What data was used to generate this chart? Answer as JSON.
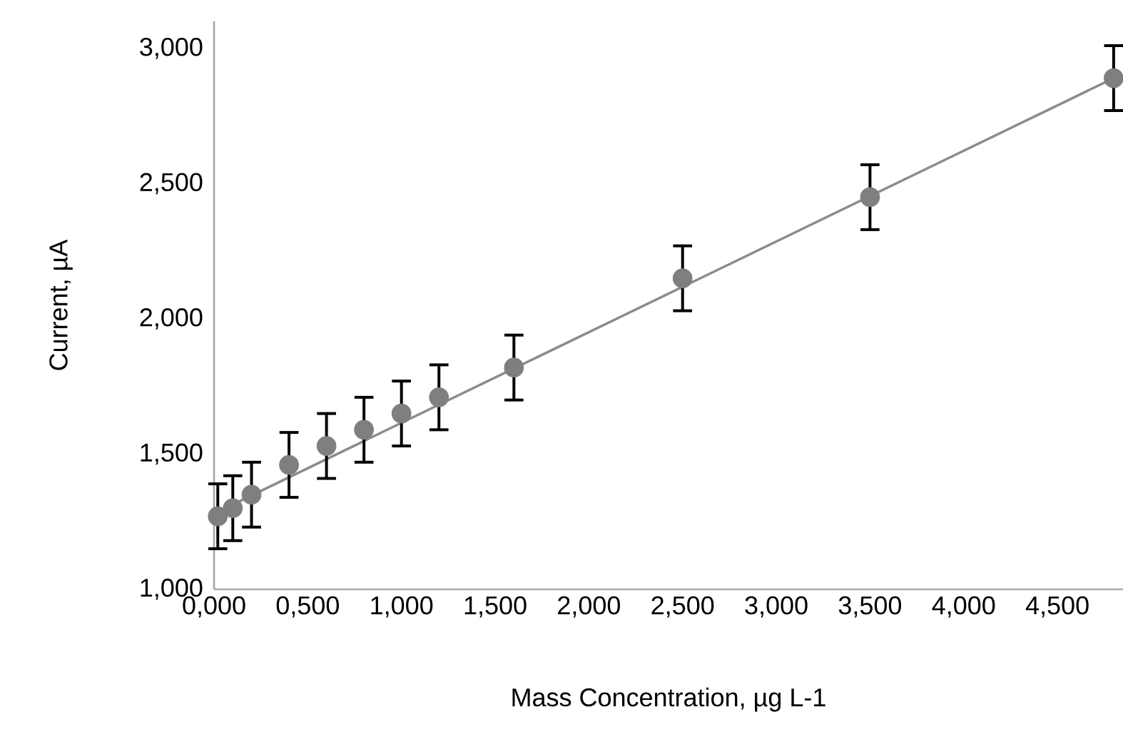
{
  "chart_data": {
    "type": "scatter",
    "xlabel": "Mass Concentration, µg L-1",
    "ylabel": "Current, µA",
    "xlim": [
      0,
      4.85
    ],
    "ylim": [
      1.0,
      3.1
    ],
    "xticks": [
      {
        "value": 0,
        "label": "0,000"
      },
      {
        "value": 0.5,
        "label": "0,500"
      },
      {
        "value": 1.0,
        "label": "1,000"
      },
      {
        "value": 1.5,
        "label": "1,500"
      },
      {
        "value": 2.0,
        "label": "2,000"
      },
      {
        "value": 2.5,
        "label": "2,500"
      },
      {
        "value": 3.0,
        "label": "3,000"
      },
      {
        "value": 3.5,
        "label": "3,500"
      },
      {
        "value": 4.0,
        "label": "4,000"
      },
      {
        "value": 4.5,
        "label": "4,500"
      }
    ],
    "yticks": [
      {
        "value": 1.0,
        "label": "1,000"
      },
      {
        "value": 1.5,
        "label": "1,500"
      },
      {
        "value": 2.0,
        "label": "2,000"
      },
      {
        "value": 2.5,
        "label": "2,500"
      },
      {
        "value": 3.0,
        "label": "3,000"
      }
    ],
    "grid": false,
    "series": [
      {
        "type": "scatter",
        "marker": "circle",
        "color": "#7f7f7f",
        "x": [
          0.02,
          0.1,
          0.2,
          0.4,
          0.6,
          0.8,
          1.0,
          1.2,
          1.6,
          2.5,
          3.5,
          4.8
        ],
        "values": [
          1.27,
          1.3,
          1.35,
          1.46,
          1.53,
          1.59,
          1.65,
          1.71,
          1.82,
          2.15,
          2.45,
          2.89
        ],
        "errors": [
          0.12,
          0.12,
          0.12,
          0.12,
          0.12,
          0.12,
          0.12,
          0.12,
          0.12,
          0.12,
          0.12,
          0.12
        ]
      },
      {
        "type": "line",
        "color": "#8c8c8c",
        "x": [
          0,
          4.8
        ],
        "values": [
          1.28,
          2.89
        ]
      }
    ]
  }
}
